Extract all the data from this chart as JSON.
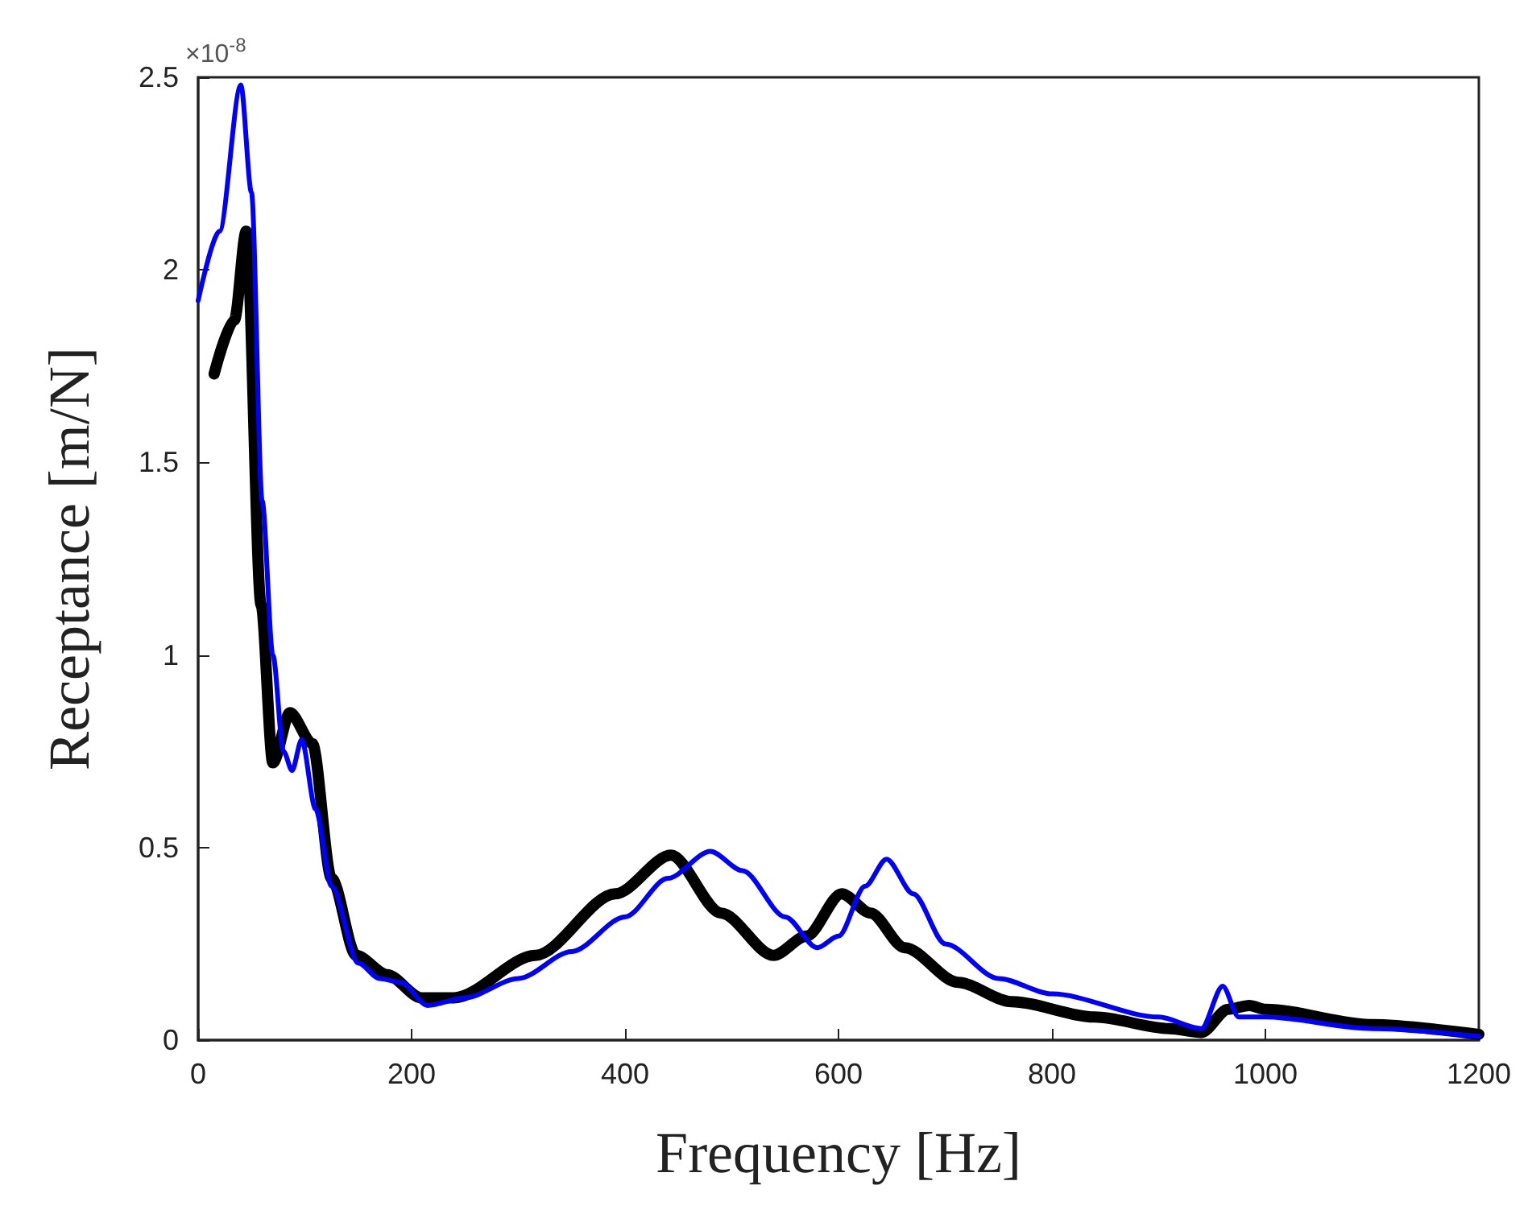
{
  "chart_data": {
    "type": "line",
    "xlabel": "Frequency [Hz]",
    "ylabel": "Receptance [m/N]",
    "annotations": [
      "×10$^{-8}$"
    ],
    "xlim": [
      0,
      1200
    ],
    "xticks": [
      0,
      200,
      400,
      600,
      800,
      1000,
      1200
    ],
    "ylim": [
      0,
      2.5
    ],
    "yticks": [
      0,
      0.5,
      1,
      1.5,
      2,
      2.5
    ],
    "grid": false,
    "marker": "none",
    "line_style": "solid",
    "series": [
      {
        "color": "#000000",
        "x": [
          15,
          34,
          45,
          59,
          70,
          86,
          107,
          125,
          148,
          177,
          209,
          240,
          316,
          391,
          443,
          490,
          539,
          570,
          603,
          630,
          662,
          712,
          762,
          840,
          910,
          940,
          965,
          985,
          1000,
          1100,
          1200
        ],
        "values": [
          1.73,
          1.87,
          2.1,
          1.13,
          0.72,
          0.85,
          0.77,
          0.42,
          0.22,
          0.17,
          0.11,
          0.11,
          0.22,
          0.38,
          0.48,
          0.33,
          0.22,
          0.27,
          0.38,
          0.33,
          0.24,
          0.15,
          0.1,
          0.06,
          0.03,
          0.02,
          0.08,
          0.09,
          0.08,
          0.04,
          0.015
        ]
      },
      {
        "color": "#0000ff",
        "x": [
          0,
          20,
          40,
          50,
          60,
          70,
          80,
          88,
          97,
          110,
          125,
          150,
          170,
          190,
          215,
          250,
          300,
          350,
          400,
          440,
          480,
          510,
          550,
          580,
          600,
          625,
          645,
          670,
          700,
          750,
          800,
          900,
          940,
          960,
          975,
          1000,
          1100,
          1200
        ],
        "values": [
          1.92,
          2.1,
          2.48,
          2.2,
          1.4,
          1.0,
          0.75,
          0.7,
          0.78,
          0.6,
          0.4,
          0.2,
          0.16,
          0.15,
          0.09,
          0.11,
          0.16,
          0.23,
          0.32,
          0.42,
          0.49,
          0.44,
          0.32,
          0.24,
          0.27,
          0.4,
          0.47,
          0.38,
          0.25,
          0.16,
          0.12,
          0.06,
          0.03,
          0.14,
          0.06,
          0.06,
          0.03,
          0.01
        ]
      }
    ]
  }
}
